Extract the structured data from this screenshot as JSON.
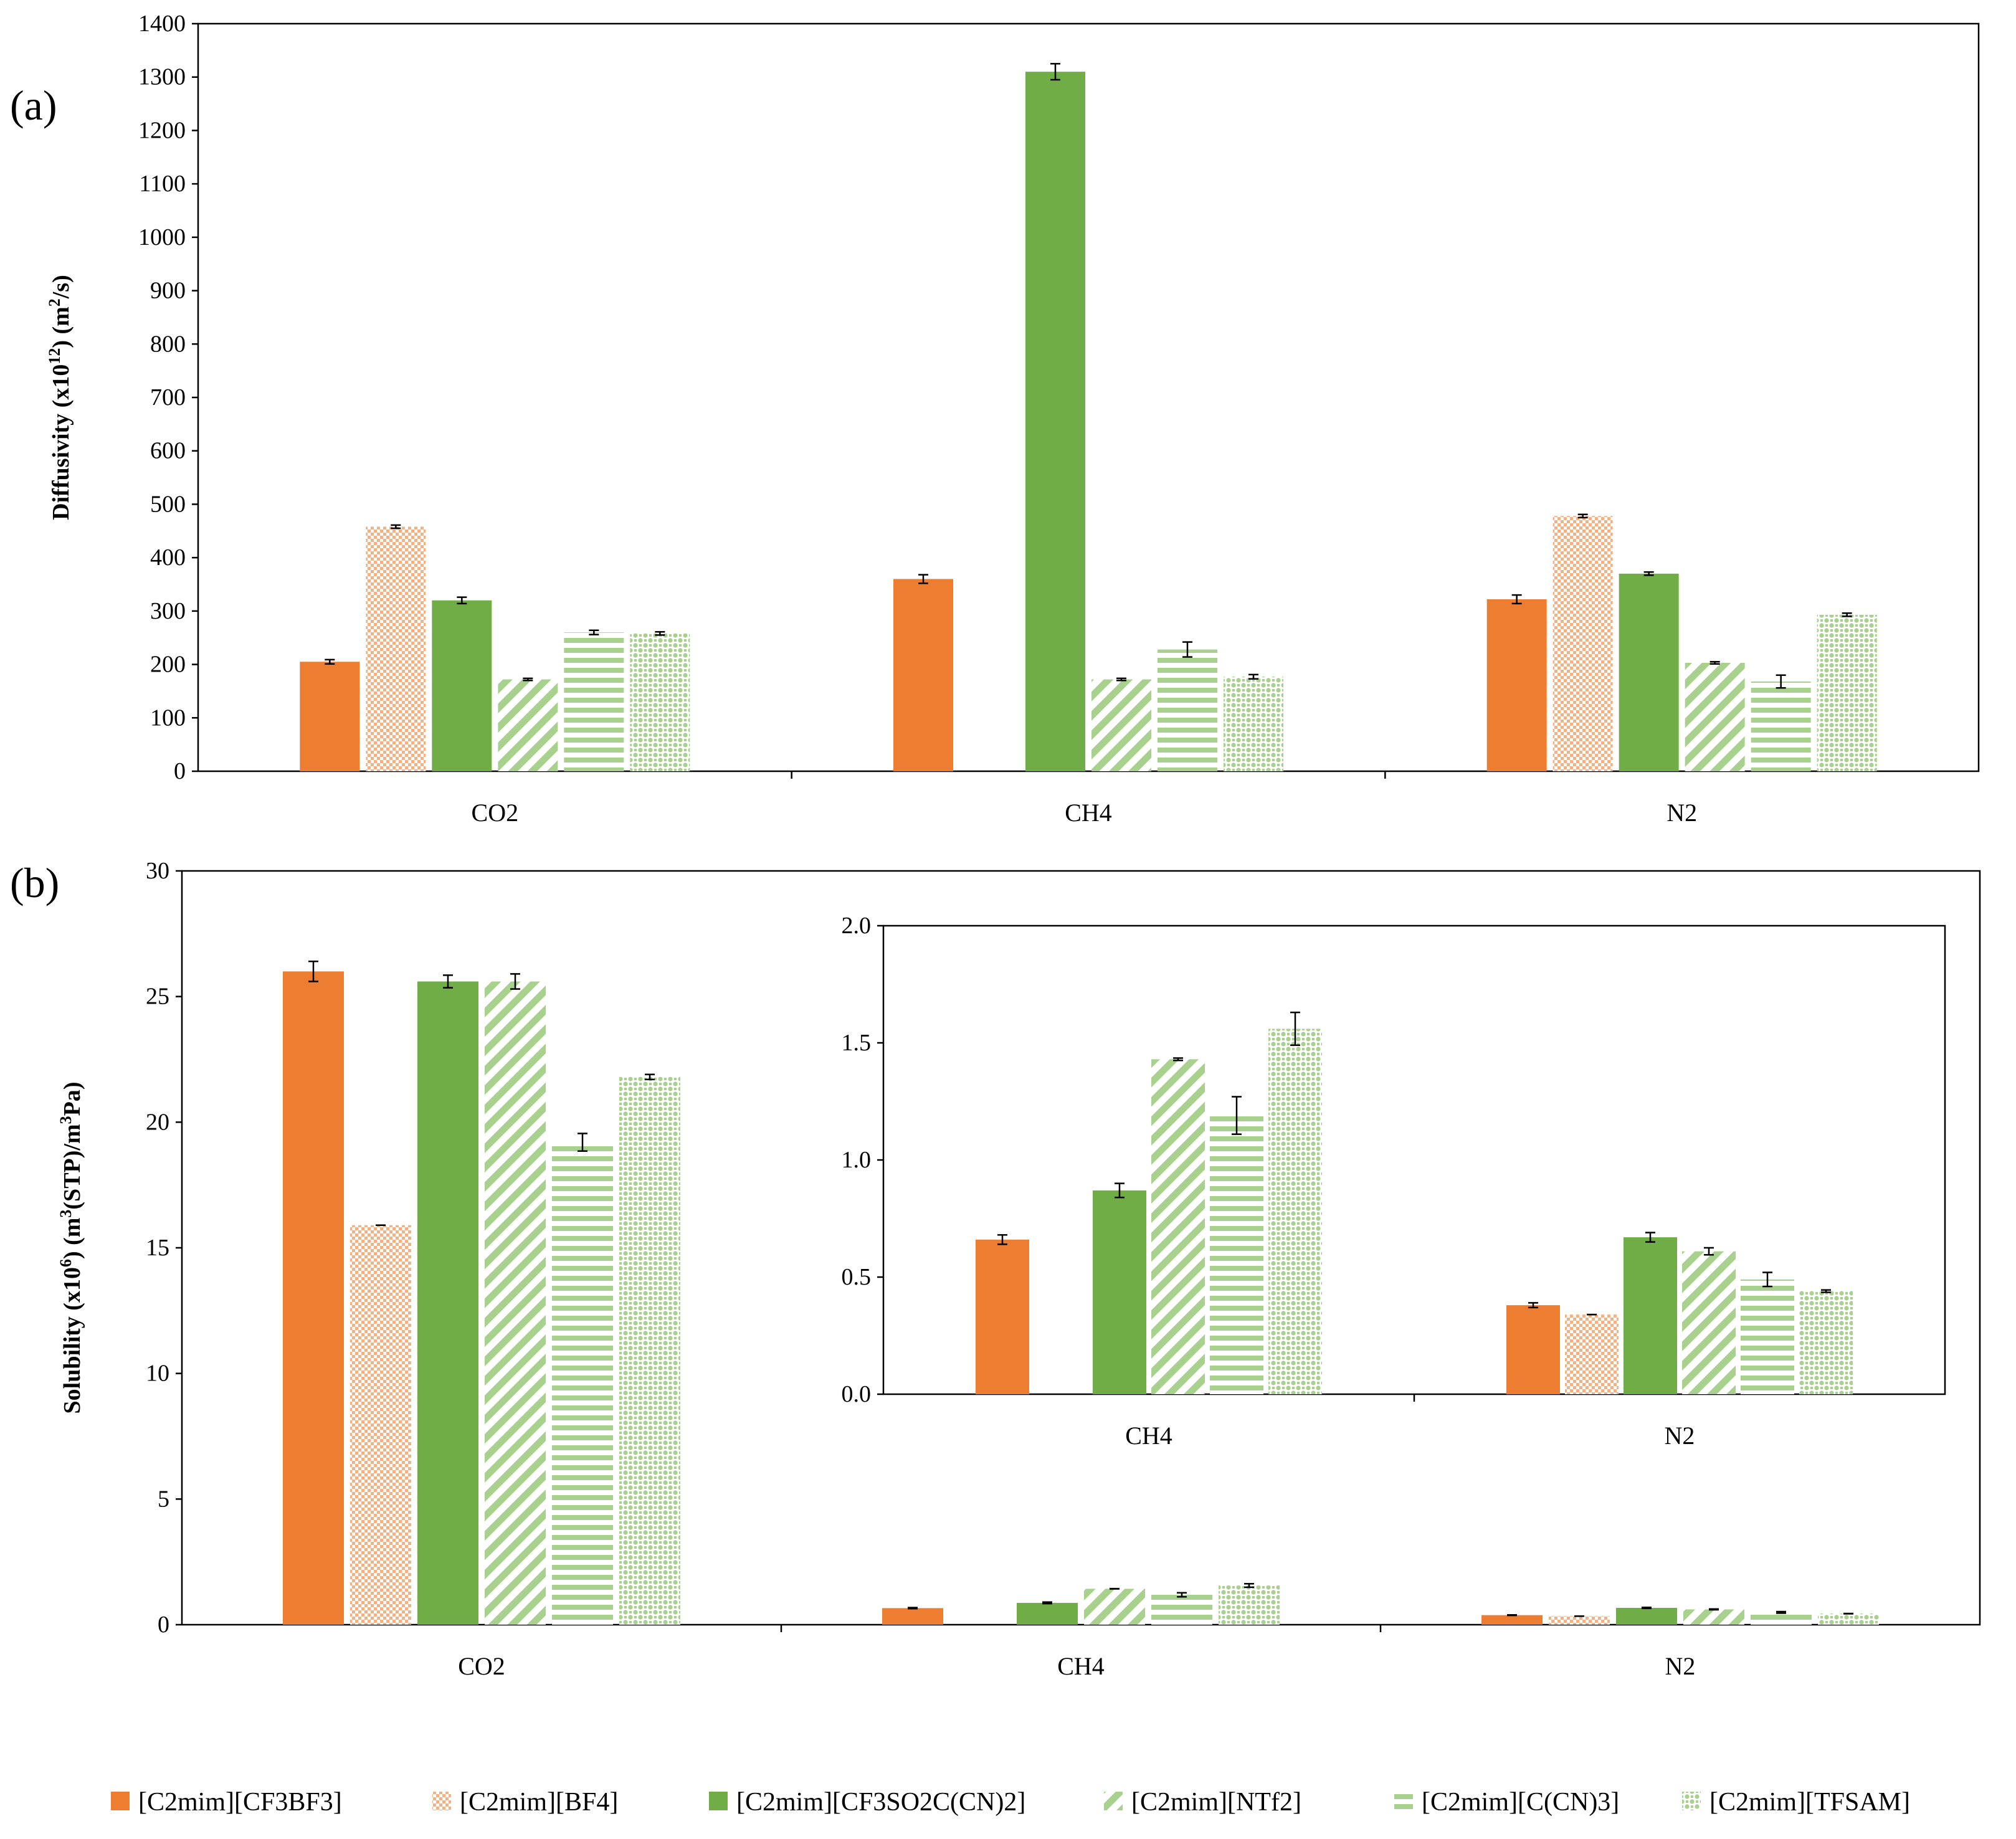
{
  "panels": {
    "a": {
      "label": "(a)"
    },
    "b": {
      "label": "(b)"
    }
  },
  "colors": {
    "orange": "#ED7D31",
    "green": "#70AD47",
    "light_orange": "#F4B183",
    "light_green": "#A9D18E"
  },
  "legend": [
    {
      "name": "[C2mim][CF3BF3]",
      "fill": "orange-solid"
    },
    {
      "name": "[C2mim][BF4]",
      "fill": "orange-dots"
    },
    {
      "name": "[C2mim][CF3SO2C(CN)2]",
      "fill": "green-solid"
    },
    {
      "name": "[C2mim][NTf2]",
      "fill": "green-diag"
    },
    {
      "name": "[C2mim][C(CN)3]",
      "fill": "green-horiz"
    },
    {
      "name": "[C2mim][TFSAM]",
      "fill": "green-check"
    }
  ],
  "chart_data": [
    {
      "id": "a",
      "type": "bar",
      "ylabel": "Diffusivity (x10^12) (m²/s)",
      "ylabel_parts": {
        "pre": "Diffusivity (x10",
        "sup": "12",
        "post": ") (m",
        "sup2": "2",
        "post2": "/s)"
      },
      "ylim": [
        0,
        1400
      ],
      "yticks": [
        "0",
        "100",
        "200",
        "300",
        "400",
        "500",
        "600",
        "700",
        "800",
        "900",
        "1000",
        "1100",
        "1200",
        "1300",
        "1400"
      ],
      "categories": [
        "CO2",
        "CH4",
        "N2"
      ],
      "series": [
        {
          "name": "[C2mim][CF3BF3]",
          "values": [
            205,
            360,
            322
          ],
          "errors": [
            4,
            8,
            8
          ]
        },
        {
          "name": "[C2mim][BF4]",
          "values": [
            458,
            null,
            478
          ],
          "errors": [
            3,
            null,
            3
          ]
        },
        {
          "name": "[C2mim][CF3SO2C(CN)2]",
          "values": [
            320,
            1310,
            370
          ],
          "errors": [
            6,
            15,
            3
          ]
        },
        {
          "name": "[C2mim][NTf2]",
          "values": [
            172,
            172,
            203
          ],
          "errors": [
            2,
            2,
            2
          ]
        },
        {
          "name": "[C2mim][C(CN)3]",
          "values": [
            260,
            228,
            168
          ],
          "errors": [
            4,
            14,
            12
          ]
        },
        {
          "name": "[C2mim][TFSAM]",
          "values": [
            258,
            177,
            293
          ],
          "errors": [
            3,
            4,
            3
          ]
        }
      ]
    },
    {
      "id": "b",
      "type": "bar",
      "ylabel": "Solubility (x10^6) (m³(STP)/m³Pa)",
      "ylabel_parts": {
        "pre": "Solubility (x10",
        "sup": "6",
        "post": ") (m",
        "sup2": "3",
        "post2": "(STP)/m",
        "sup3": "3",
        "post3": "Pa)"
      },
      "ylim": [
        0,
        30
      ],
      "yticks": [
        "0",
        "5",
        "10",
        "15",
        "20",
        "25",
        "30"
      ],
      "categories": [
        "CO2",
        "CH4",
        "N2"
      ],
      "series": [
        {
          "name": "[C2mim][CF3BF3]",
          "values": [
            26.0,
            0.66,
            0.38
          ],
          "errors": [
            0.4,
            0.02,
            0.01
          ]
        },
        {
          "name": "[C2mim][BF4]",
          "values": [
            15.9,
            null,
            0.34
          ],
          "errors": [
            0,
            null,
            0
          ]
        },
        {
          "name": "[C2mim][CF3SO2C(CN)2]",
          "values": [
            25.6,
            0.87,
            0.67
          ],
          "errors": [
            0.25,
            0.03,
            0.02
          ]
        },
        {
          "name": "[C2mim][NTf2]",
          "values": [
            25.6,
            1.43,
            0.61
          ],
          "errors": [
            0.3,
            0.005,
            0.015
          ]
        },
        {
          "name": "[C2mim][C(CN)3]",
          "values": [
            19.2,
            1.19,
            0.49
          ],
          "errors": [
            0.35,
            0.08,
            0.03
          ]
        },
        {
          "name": "[C2mim][TFSAM]",
          "values": [
            21.8,
            1.56,
            0.44
          ],
          "errors": [
            0.1,
            0.07,
            0.005
          ]
        }
      ]
    },
    {
      "id": "b-inset",
      "type": "bar",
      "ylim": [
        0,
        2.0
      ],
      "yticks": [
        "0.0",
        "0.5",
        "1.0",
        "1.5",
        "2.0"
      ],
      "categories": [
        "CH4",
        "N2"
      ],
      "series": [
        {
          "name": "[C2mim][CF3BF3]",
          "values": [
            0.66,
            0.38
          ],
          "errors": [
            0.02,
            0.01
          ]
        },
        {
          "name": "[C2mim][BF4]",
          "values": [
            null,
            0.34
          ],
          "errors": [
            null,
            0
          ]
        },
        {
          "name": "[C2mim][CF3SO2C(CN)2]",
          "values": [
            0.87,
            0.67
          ],
          "errors": [
            0.03,
            0.02
          ]
        },
        {
          "name": "[C2mim][NTf2]",
          "values": [
            1.43,
            0.61
          ],
          "errors": [
            0.005,
            0.015
          ]
        },
        {
          "name": "[C2mim][C(CN)3]",
          "values": [
            1.19,
            0.49
          ],
          "errors": [
            0.08,
            0.03
          ]
        },
        {
          "name": "[C2mim][TFSAM]",
          "values": [
            1.56,
            0.44
          ],
          "errors": [
            0.07,
            0.005
          ]
        }
      ]
    }
  ]
}
